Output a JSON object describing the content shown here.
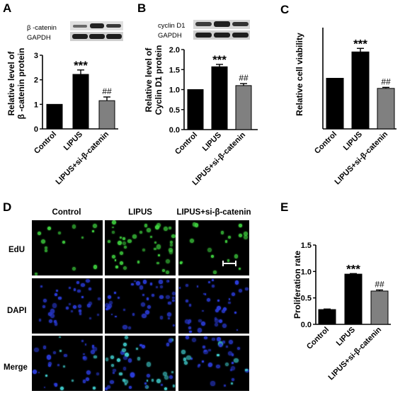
{
  "panels": {
    "A": {
      "letter": "A",
      "blot_labels": [
        "β -catenin",
        "GAPDH"
      ],
      "ylabel": [
        "Relative level of",
        "β -catenin protein"
      ]
    },
    "B": {
      "letter": "B",
      "blot_labels": [
        "cyclin D1",
        "GAPDH"
      ],
      "ylabel": [
        "Relative level of",
        "Cyclin D1 protein"
      ]
    },
    "C": {
      "letter": "C",
      "ylabel": [
        "Relative cell viability"
      ]
    },
    "D": {
      "letter": "D",
      "columns": [
        "Control",
        "LIPUS",
        "LIPUS+si-β-catenin"
      ],
      "rows": [
        "EdU",
        "DAPI",
        "Merge"
      ]
    },
    "E": {
      "letter": "E",
      "ylabel": [
        "Proliferation rate"
      ]
    }
  },
  "colors": {
    "control_bar": "#000000",
    "lipus_bar": "#000000",
    "si_bar": "#808080",
    "edu_green": "#3fd23f",
    "dapi_blue": "#2a3bd6",
    "merge_cyan": "#3ec8c8"
  },
  "chart_data": [
    {
      "panel": "A",
      "type": "bar",
      "categories": [
        "Control",
        "LIPUS",
        "LIPUS+si-β-catenin"
      ],
      "values": [
        1.0,
        2.22,
        1.15
      ],
      "errors": [
        0,
        0.18,
        0.15
      ],
      "annotations": [
        "",
        "***",
        "##"
      ],
      "ylim": [
        0,
        3
      ],
      "yticks": [
        0,
        1,
        2,
        3
      ],
      "ylabel": "Relative level of β -catenin protein"
    },
    {
      "panel": "B",
      "type": "bar",
      "categories": [
        "Control",
        "LIPUS",
        "LIPUS+si-β-catenin"
      ],
      "values": [
        1.0,
        1.57,
        1.1
      ],
      "errors": [
        0,
        0.06,
        0.05
      ],
      "annotations": [
        "",
        "***",
        "##"
      ],
      "ylim": [
        0,
        2.0
      ],
      "yticks": [
        0.0,
        0.5,
        1.0,
        1.5,
        2.0
      ],
      "ylabel": "Relative level of Cyclin D1 protein"
    },
    {
      "panel": "C",
      "type": "bar",
      "categories": [
        "Control",
        "LIPUS",
        "LIPUS+si-β-catenin"
      ],
      "values": [
        1.0,
        1.52,
        0.8
      ],
      "errors": [
        0,
        0.07,
        0.02
      ],
      "annotations": [
        "",
        "***",
        "##"
      ],
      "ylim": [
        0,
        2.0
      ],
      "yticks": [],
      "ylabel": "Relative cell viability"
    },
    {
      "panel": "E",
      "type": "bar",
      "categories": [
        "Control",
        "LIPUS",
        "LIPUS+si-β-catenin"
      ],
      "values": [
        0.28,
        0.95,
        0.63
      ],
      "errors": [
        0.01,
        0.01,
        0.02
      ],
      "annotations": [
        "",
        "***",
        "##"
      ],
      "ylim": [
        0,
        1.5
      ],
      "yticks": [
        0.0,
        0.5,
        1.0,
        1.5
      ],
      "ylabel": "Proliferation rate"
    }
  ]
}
